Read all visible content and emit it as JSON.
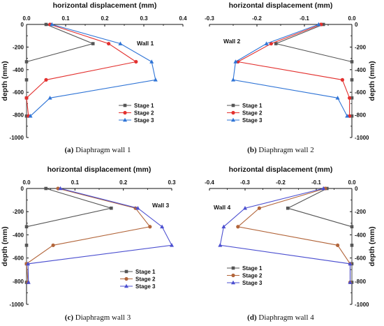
{
  "colors": {
    "stage1": "#555555",
    "stage2": "#e3312f",
    "stage3": "#2f74d6",
    "stage2_alt": "#b2653a",
    "stage3_alt": "#4b4fd0"
  },
  "chart_data": [
    {
      "id": "a",
      "type": "line",
      "title": "horizontal displacement (mm)",
      "xlabel": "horizontal displacement (mm)",
      "ylabel": "depth (mm)",
      "xlim": [
        0,
        0.4
      ],
      "ylim": [
        -1000,
        0
      ],
      "xticks": [
        0.0,
        0.1,
        0.2,
        0.3,
        0.4
      ],
      "xtick_labels": [
        "0.0",
        "0.1",
        "0.2",
        "0.3",
        "0.4"
      ],
      "yticks": [
        0,
        -200,
        -400,
        -600,
        -800,
        -1000
      ],
      "ytick_labels": [
        "0",
        "-200",
        "-400",
        "-600",
        "-800",
        "-1000"
      ],
      "x_axis_position": "top",
      "y_axis_position": "left",
      "annotation": "Wall 1",
      "legend_position": "bottom-right",
      "caption_letter": "(a)",
      "caption_text": "Diaphragm wall 1",
      "series": [
        {
          "name": "Stage 1",
          "marker": "square",
          "color": "#555555",
          "x": [
            0.05,
            0.17,
            0.0,
            0.0,
            0.0,
            0.0
          ],
          "y": [
            0,
            -170,
            -330,
            -490,
            -650,
            -810
          ]
        },
        {
          "name": "Stage 2",
          "marker": "circle",
          "color": "#e3312f",
          "x": [
            0.06,
            0.21,
            0.28,
            0.05,
            0.0,
            0.005
          ],
          "y": [
            0,
            -170,
            -330,
            -490,
            -650,
            -810
          ]
        },
        {
          "name": "Stage 3",
          "marker": "triangle",
          "color": "#2f74d6",
          "x": [
            0.065,
            0.24,
            0.32,
            0.33,
            0.06,
            0.01
          ],
          "y": [
            0,
            -170,
            -330,
            -490,
            -650,
            -810
          ]
        }
      ]
    },
    {
      "id": "b",
      "type": "line",
      "title": "horizontal displacement (mm)",
      "xlabel": "horizontal displacement (mm)",
      "ylabel": "depth (mm)",
      "xlim": [
        -0.3,
        0.0
      ],
      "ylim": [
        -1000,
        0
      ],
      "xticks": [
        -0.3,
        -0.2,
        -0.1,
        0.0
      ],
      "xtick_labels": [
        "-0.3",
        "-0.2",
        "-0.1",
        "0.0"
      ],
      "yticks": [
        0,
        -200,
        -400,
        -600,
        -800,
        -1000
      ],
      "ytick_labels": [
        "0",
        "-200",
        "-400",
        "-600",
        "-800",
        "-1000"
      ],
      "x_axis_position": "top",
      "y_axis_position": "right",
      "annotation": "Wall 2",
      "legend_position": "bottom-left",
      "caption_letter": "(b)",
      "caption_text": "Diaphragm wall 2",
      "series": [
        {
          "name": "Stage 1",
          "marker": "square",
          "color": "#555555",
          "x": [
            -0.06,
            -0.16,
            0.0,
            0.0,
            0.0,
            0.0
          ],
          "y": [
            0,
            -170,
            -330,
            -490,
            -650,
            -810
          ]
        },
        {
          "name": "Stage 2",
          "marker": "circle",
          "color": "#e3312f",
          "x": [
            -0.065,
            -0.17,
            -0.24,
            -0.02,
            -0.005,
            -0.005
          ],
          "y": [
            0,
            -170,
            -330,
            -490,
            -650,
            -810
          ]
        },
        {
          "name": "Stage 3",
          "marker": "triangle",
          "color": "#2f74d6",
          "x": [
            -0.07,
            -0.18,
            -0.245,
            -0.25,
            -0.03,
            -0.01
          ],
          "y": [
            0,
            -170,
            -330,
            -490,
            -650,
            -810
          ]
        }
      ]
    },
    {
      "id": "c",
      "type": "line",
      "title": "horizontal displacement (mm)",
      "xlabel": "horizontal displacement (mm)",
      "ylabel": "depth (mm)",
      "xlim": [
        0,
        0.3
      ],
      "ylim": [
        -1000,
        0
      ],
      "xticks": [
        0.0,
        0.1,
        0.2,
        0.3
      ],
      "xtick_labels": [
        "0.0",
        "0.1",
        "0.2",
        "0.3"
      ],
      "yticks": [
        0,
        -200,
        -400,
        -600,
        -800,
        -1000
      ],
      "ytick_labels": [
        "0",
        "-200",
        "-400",
        "-600",
        "-800",
        "-1000"
      ],
      "x_axis_position": "top",
      "y_axis_position": "left",
      "annotation": "Wall 3",
      "legend_position": "bottom-right",
      "caption_letter": "(c)",
      "caption_text": "Diaphragm wall 3",
      "series": [
        {
          "name": "Stage 1",
          "marker": "square",
          "color": "#555555",
          "x": [
            0.04,
            0.175,
            0.0,
            0.0,
            0.0,
            0.0
          ],
          "y": [
            0,
            -170,
            -330,
            -490,
            -650,
            -810
          ]
        },
        {
          "name": "Stage 2",
          "marker": "circle",
          "color": "#b2653a",
          "x": [
            0.065,
            0.225,
            0.255,
            0.055,
            0.0,
            0.003
          ],
          "y": [
            0,
            -170,
            -330,
            -490,
            -650,
            -810
          ]
        },
        {
          "name": "Stage 3",
          "marker": "triangle",
          "color": "#4b4fd0",
          "x": [
            0.07,
            0.23,
            0.28,
            0.3,
            0.003,
            0.004
          ],
          "y": [
            0,
            -170,
            -330,
            -490,
            -650,
            -810
          ]
        }
      ]
    },
    {
      "id": "d",
      "type": "line",
      "title": "horizontal displacement (mm)",
      "xlabel": "horizontal displacement (mm)",
      "ylabel": "depth (mm)",
      "xlim": [
        -0.4,
        0.0
      ],
      "ylim": [
        -1000,
        0
      ],
      "xticks": [
        -0.4,
        -0.3,
        -0.2,
        -0.1,
        0.0
      ],
      "xtick_labels": [
        "-0.4",
        "-0.3",
        "-0.2",
        "-0.1",
        "0.0"
      ],
      "yticks": [
        0,
        -200,
        -400,
        -600,
        -800,
        -1000
      ],
      "ytick_labels": [
        "0",
        "-200",
        "-400",
        "-600",
        "-800",
        "-1000"
      ],
      "x_axis_position": "top",
      "y_axis_position": "right",
      "annotation": "Wall 4",
      "legend_position": "bottom-left",
      "caption_letter": "(d)",
      "caption_text": "Diaphragm wall 4",
      "series": [
        {
          "name": "Stage 1",
          "marker": "square",
          "color": "#555555",
          "x": [
            -0.07,
            -0.18,
            0.0,
            0.0,
            0.0,
            0.0
          ],
          "y": [
            0,
            -170,
            -330,
            -490,
            -650,
            -810
          ]
        },
        {
          "name": "Stage 2",
          "marker": "circle",
          "color": "#b2653a",
          "x": [
            -0.075,
            -0.26,
            -0.32,
            -0.04,
            -0.005,
            -0.005
          ],
          "y": [
            0,
            -170,
            -330,
            -490,
            -650,
            -810
          ]
        },
        {
          "name": "Stage 3",
          "marker": "triangle",
          "color": "#4b4fd0",
          "x": [
            -0.08,
            -0.3,
            -0.36,
            -0.37,
            -0.005,
            -0.005
          ],
          "y": [
            0,
            -170,
            -330,
            -490,
            -650,
            -810
          ]
        }
      ]
    }
  ]
}
